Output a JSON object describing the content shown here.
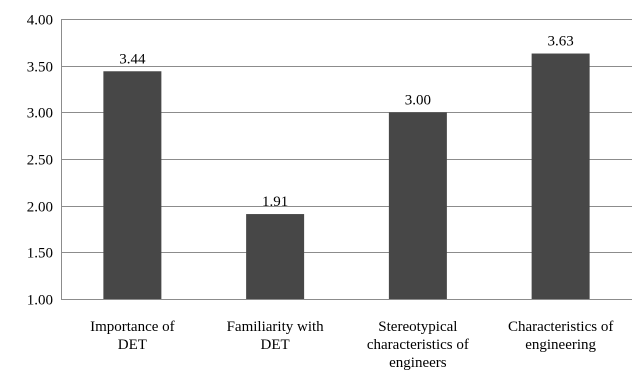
{
  "chart_data": {
    "type": "bar",
    "categories": [
      [
        "Importance of",
        "DET"
      ],
      [
        "Familiarity with",
        "DET"
      ],
      [
        "Stereotypical",
        "characteristics of",
        "engineers"
      ],
      [
        "Characteristics of",
        "engineering"
      ]
    ],
    "values": [
      3.44,
      1.91,
      3.0,
      3.63
    ],
    "data_labels": [
      "3.44",
      "1.91",
      "3.00",
      "3.63"
    ],
    "ylim": [
      1.0,
      4.0
    ],
    "yticks": [
      "1.00",
      "1.50",
      "2.00",
      "2.50",
      "3.00",
      "3.50",
      "4.00"
    ],
    "grid": true,
    "bar_color": "#474747",
    "grid_color": "#8c8c8c"
  }
}
